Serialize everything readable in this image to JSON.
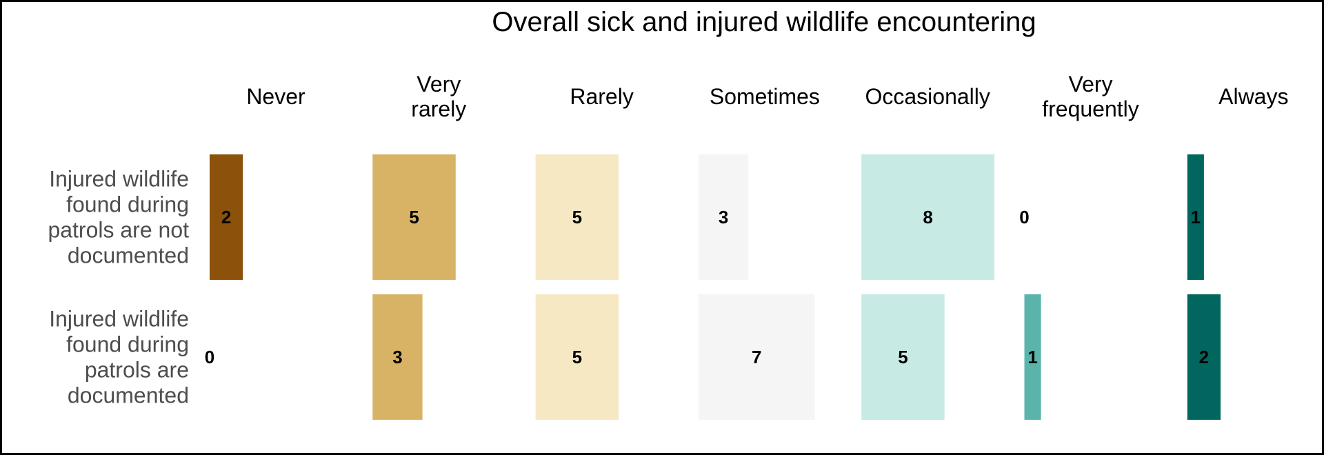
{
  "chart_data": {
    "type": "bar",
    "title": "Overall sick and injured wildlife encountering",
    "categories": [
      [
        "Never"
      ],
      [
        "Very",
        "rarely"
      ],
      [
        "Rarely"
      ],
      [
        "Sometimes"
      ],
      [
        "Occasionally"
      ],
      [
        "Very",
        "frequently"
      ],
      [
        "Always"
      ]
    ],
    "rows": [
      {
        "label": [
          "Injured wildlife",
          "found during",
          "patrols are not",
          "documented"
        ],
        "values": [
          2,
          5,
          5,
          3,
          8,
          0,
          1
        ]
      },
      {
        "label": [
          "Injured wildlife",
          "found during",
          "patrols are",
          "documented"
        ],
        "values": [
          0,
          3,
          5,
          7,
          5,
          1,
          2
        ]
      }
    ],
    "colors": [
      "#8c510a",
      "#d8b365",
      "#f6e8c3",
      "#f5f5f5",
      "#c7eae5",
      "#5ab4ac",
      "#01665e"
    ],
    "legend": "none",
    "grid": false
  }
}
